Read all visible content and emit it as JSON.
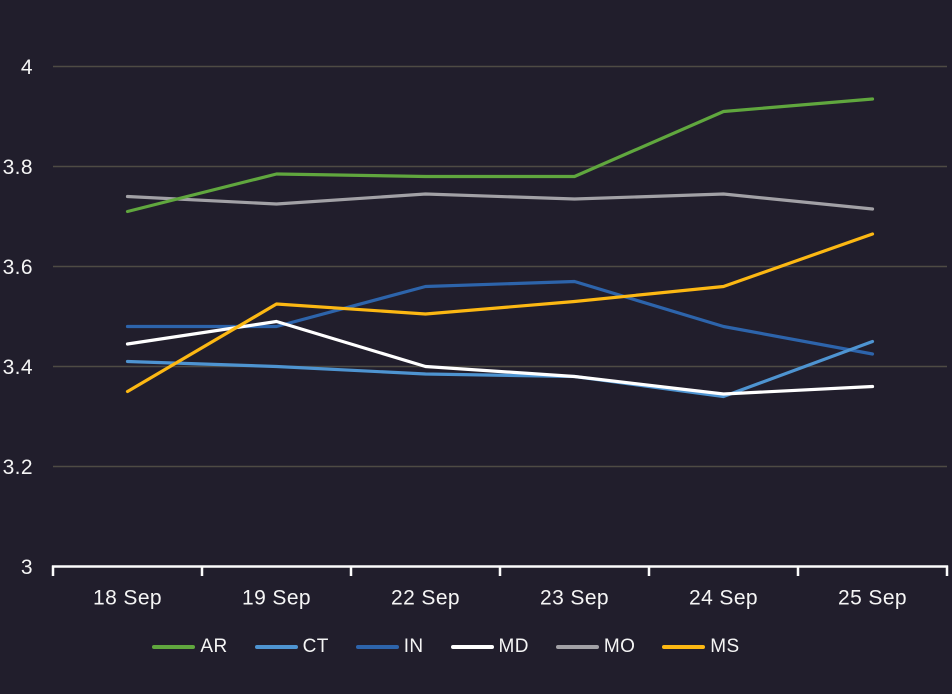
{
  "chart_data": {
    "type": "line",
    "title": "",
    "xlabel": "",
    "ylabel": "",
    "categories": [
      "18 Sep",
      "19 Sep",
      "22 Sep",
      "23 Sep",
      "24 Sep",
      "25 Sep"
    ],
    "series": [
      {
        "name": "AR",
        "color": "#60a73e",
        "values": [
          3.71,
          3.785,
          3.78,
          3.78,
          3.91,
          3.935
        ]
      },
      {
        "name": "CT",
        "color": "#4e94d1",
        "values": [
          3.41,
          3.4,
          3.385,
          3.38,
          3.34,
          3.45
        ]
      },
      {
        "name": "IN",
        "color": "#2d64ab",
        "values": [
          3.48,
          3.48,
          3.56,
          3.57,
          3.48,
          3.425
        ]
      },
      {
        "name": "MD",
        "color": "#ffffff",
        "values": [
          3.445,
          3.49,
          3.4,
          3.38,
          3.345,
          3.36
        ]
      },
      {
        "name": "MO",
        "color": "#a2a1a6",
        "values": [
          3.74,
          3.725,
          3.745,
          3.735,
          3.745,
          3.715
        ]
      },
      {
        "name": "MS",
        "color": "#fcb813",
        "values": [
          3.35,
          3.525,
          3.505,
          3.53,
          3.56,
          3.665
        ]
      }
    ],
    "ylim": [
      3,
      4
    ],
    "yticks": [
      3,
      3.2,
      3.4,
      3.6,
      3.8,
      4
    ],
    "ytick_labels": [
      "3",
      "3.2",
      "3.4",
      "3.6",
      "3.8",
      "4"
    ],
    "grid": "horizontal",
    "legend_position": "bottom"
  },
  "colors": {
    "background": "#211e2c",
    "gridline": "#4e4b44",
    "axis_line": "#fcfcfc",
    "label": "#f5f5f5"
  }
}
